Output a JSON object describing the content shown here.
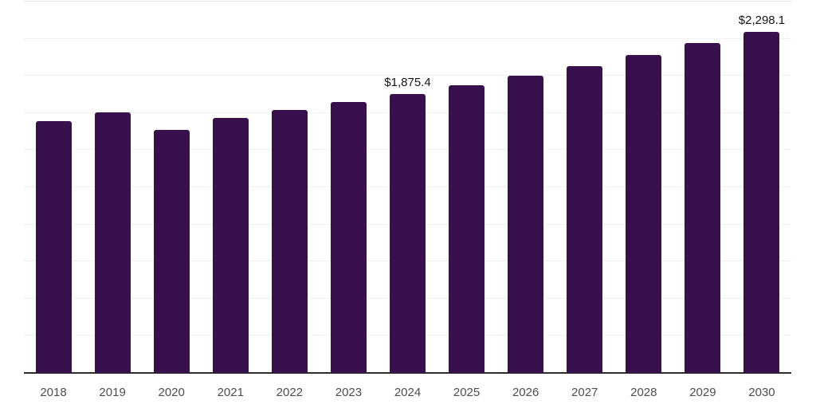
{
  "chart_data": {
    "type": "bar",
    "title": "",
    "xlabel": "",
    "ylabel": "",
    "categories": [
      "2018",
      "2019",
      "2020",
      "2021",
      "2022",
      "2023",
      "2024",
      "2025",
      "2026",
      "2027",
      "2028",
      "2029",
      "2030"
    ],
    "values": [
      1695,
      1752,
      1639,
      1717,
      1773,
      1823,
      1875.4,
      1935,
      2000,
      2067,
      2140,
      2219,
      2298.1
    ],
    "data_labels": {
      "2024": "$1,875.4",
      "2030": "$2,298.1"
    },
    "ylim": [
      0,
      2500
    ],
    "gridline_step": 250,
    "grid": true,
    "legend": false,
    "y_axis_ticks_visible": false
  },
  "colors": {
    "bar": "#38104e",
    "axis_line": "#2d2d2d",
    "gridline": "#f1f1f1",
    "gridline_top": "#e7e7e7",
    "tick_label": "#4d4d4d",
    "value_label": "#141414",
    "background": "#ffffff"
  }
}
